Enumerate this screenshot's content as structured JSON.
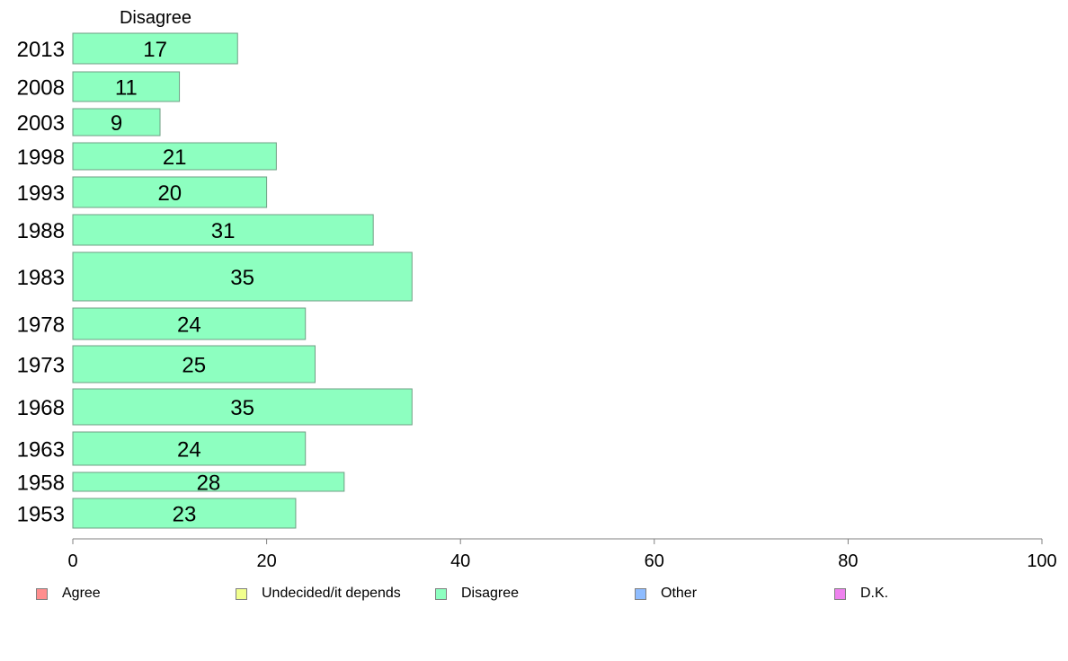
{
  "chart_data": {
    "type": "bar",
    "orientation": "horizontal",
    "title": "Disagree",
    "categories": [
      "2013",
      "2008",
      "2003",
      "1998",
      "1993",
      "1988",
      "1983",
      "1978",
      "1973",
      "1968",
      "1963",
      "1958",
      "1953"
    ],
    "series": [
      {
        "name": "Disagree",
        "color": "#8dffc0",
        "values": [
          17,
          11,
          9,
          21,
          20,
          31,
          35,
          24,
          25,
          35,
          24,
          28,
          23
        ]
      }
    ],
    "xlim": [
      0,
      100
    ],
    "xticks": [
      "0",
      "20",
      "40",
      "60",
      "80",
      "100"
    ],
    "grid": false,
    "legend_position": "bottom"
  },
  "legend": [
    {
      "label": "Agree",
      "color": "#ff8e8e"
    },
    {
      "label": "Undecided/it depends",
      "color": "#f1ff8e"
    },
    {
      "label": "Disagree",
      "color": "#8dffc0"
    },
    {
      "label": "Other",
      "color": "#8ebcff"
    },
    {
      "label": "D.K.",
      "color": "#ee82ee"
    }
  ]
}
